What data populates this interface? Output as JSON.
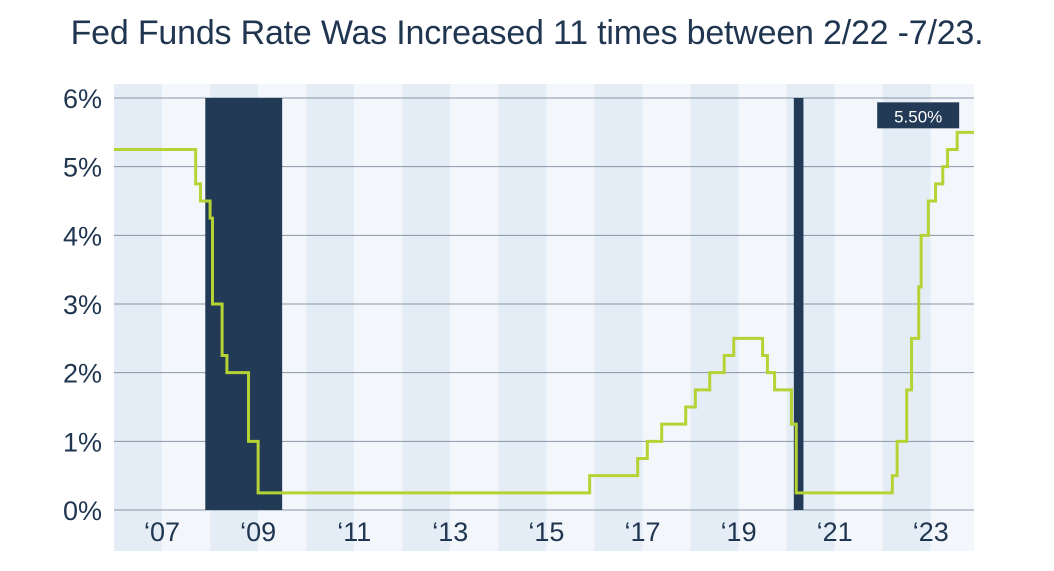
{
  "title": "Fed Funds Rate Was Increased 11 times between 2/22 -7/23.",
  "chart_data": {
    "type": "line",
    "title": "Fed Funds Rate Was Increased 11 times between 2/22 -7/23.",
    "xlabel": "",
    "ylabel": "",
    "xlim": [
      2006.0,
      2023.9
    ],
    "ylim": [
      0,
      6
    ],
    "y_ticks": [
      0,
      1,
      2,
      3,
      4,
      5,
      6
    ],
    "y_tick_labels": [
      "0%",
      "1%",
      "2%",
      "3%",
      "4%",
      "5%",
      "6%"
    ],
    "x_ticks": [
      2007,
      2009,
      2011,
      2013,
      2015,
      2017,
      2019,
      2021,
      2023
    ],
    "x_tick_labels": [
      "‘07",
      "‘09",
      "‘11",
      "‘13",
      "‘15",
      "‘17",
      "‘19",
      "‘21",
      "‘23"
    ],
    "grid": "horizontal",
    "recession_shading": [
      {
        "start": 2007.9,
        "end": 2009.5
      },
      {
        "start": 2020.15,
        "end": 2020.35
      }
    ],
    "series": [
      {
        "color": "#b5d334",
        "step": true,
        "points": [
          [
            2006.0,
            5.25
          ],
          [
            2007.7,
            4.75
          ],
          [
            2007.8,
            4.5
          ],
          [
            2008.0,
            4.25
          ],
          [
            2008.05,
            3.0
          ],
          [
            2008.25,
            2.25
          ],
          [
            2008.35,
            2.0
          ],
          [
            2008.8,
            1.0
          ],
          [
            2009.0,
            0.25
          ],
          [
            2015.9,
            0.5
          ],
          [
            2016.9,
            0.75
          ],
          [
            2017.1,
            1.0
          ],
          [
            2017.4,
            1.25
          ],
          [
            2017.9,
            1.5
          ],
          [
            2018.1,
            1.75
          ],
          [
            2018.4,
            2.0
          ],
          [
            2018.7,
            2.25
          ],
          [
            2018.9,
            2.5
          ],
          [
            2019.5,
            2.25
          ],
          [
            2019.6,
            2.0
          ],
          [
            2019.75,
            1.75
          ],
          [
            2020.1,
            1.25
          ],
          [
            2020.2,
            0.25
          ],
          [
            2022.2,
            0.5
          ],
          [
            2022.3,
            1.0
          ],
          [
            2022.5,
            1.75
          ],
          [
            2022.6,
            2.5
          ],
          [
            2022.75,
            3.25
          ],
          [
            2022.8,
            4.0
          ],
          [
            2022.95,
            4.5
          ],
          [
            2023.1,
            4.75
          ],
          [
            2023.25,
            5.0
          ],
          [
            2023.35,
            5.25
          ],
          [
            2023.55,
            5.5
          ],
          [
            2023.9,
            5.5
          ]
        ]
      }
    ],
    "annotations": [
      {
        "text": "5.50%",
        "x": 2023.55,
        "y": 5.5
      }
    ],
    "colors": {
      "line": "#b5d334",
      "recession": "#233a56",
      "band_dark": "#e4ecf5",
      "band_light": "#f3f7fb",
      "grid": "#8896a8",
      "text": "#1f3550",
      "callout_bg": "#233a56"
    }
  }
}
